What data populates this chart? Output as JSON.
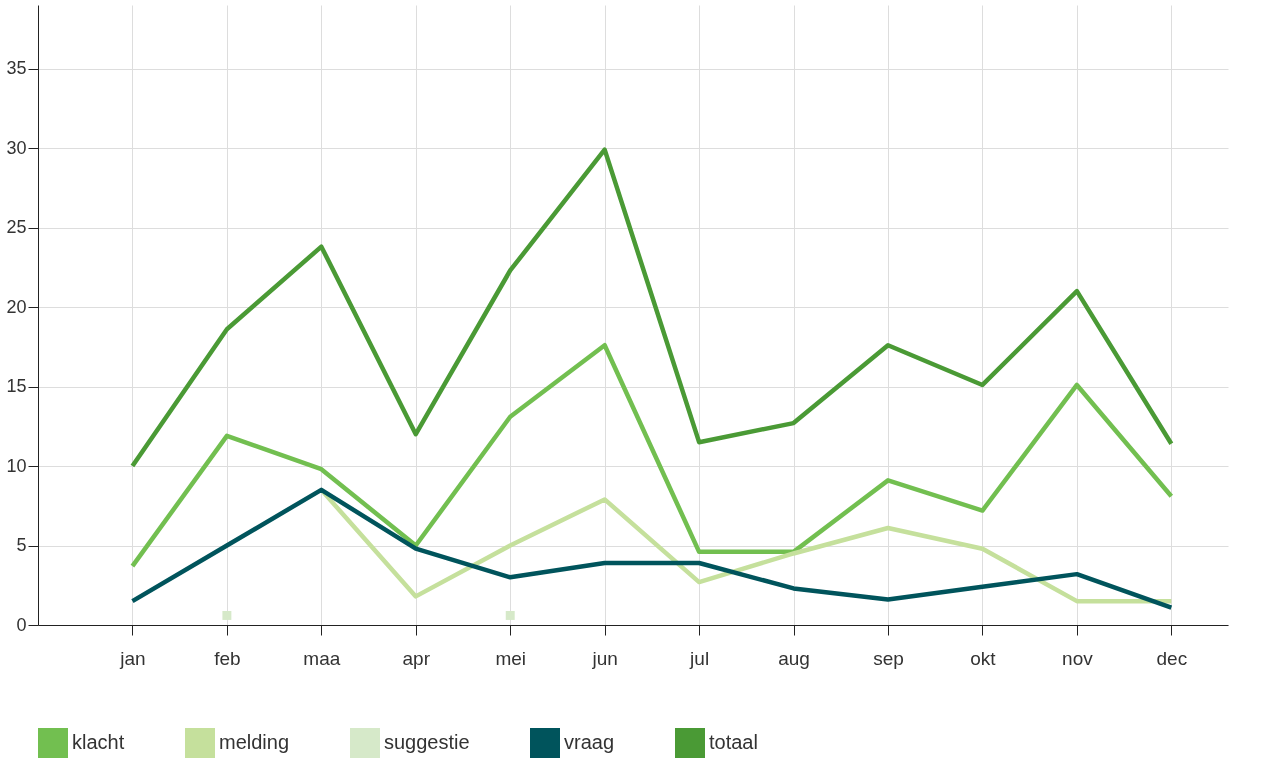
{
  "chart_data": {
    "type": "line",
    "categories": [
      "jan",
      "feb",
      "maa",
      "apr",
      "mei",
      "jun",
      "jul",
      "aug",
      "sep",
      "okt",
      "nov",
      "dec"
    ],
    "series": [
      {
        "name": "klacht",
        "color": "#72bf50",
        "values": [
          3.7,
          11.9,
          9.8,
          5.0,
          13.1,
          17.6,
          4.6,
          4.6,
          9.1,
          7.2,
          15.1,
          8.1
        ]
      },
      {
        "name": "melding",
        "color": "#c5e09c",
        "values": [
          null,
          null,
          8.5,
          1.8,
          5.0,
          7.9,
          2.7,
          4.5,
          6.1,
          4.8,
          1.5,
          1.5
        ]
      },
      {
        "name": "suggestie",
        "color": "#d6e9c9",
        "type": "scatter",
        "marker": "square",
        "values": [
          null,
          0.6,
          null,
          null,
          0.6,
          null,
          null,
          null,
          null,
          null,
          null,
          null
        ]
      },
      {
        "name": "vraag",
        "color": "#00545c",
        "values": [
          1.5,
          5.0,
          8.5,
          4.8,
          3.0,
          3.9,
          3.9,
          2.3,
          1.6,
          2.4,
          3.2,
          1.1
        ]
      },
      {
        "name": "totaal",
        "color": "#4a9a35",
        "values": [
          10,
          18.6,
          23.8,
          12.0,
          22.3,
          29.9,
          11.5,
          12.7,
          17.6,
          15.1,
          21.0,
          11.4
        ]
      }
    ],
    "ylim": [
      0,
      39
    ],
    "yticks": [
      0,
      5,
      10,
      15,
      20,
      25,
      30,
      35
    ],
    "grid": true,
    "legend": "bottom",
    "marker": "none",
    "line_style": "solid"
  }
}
